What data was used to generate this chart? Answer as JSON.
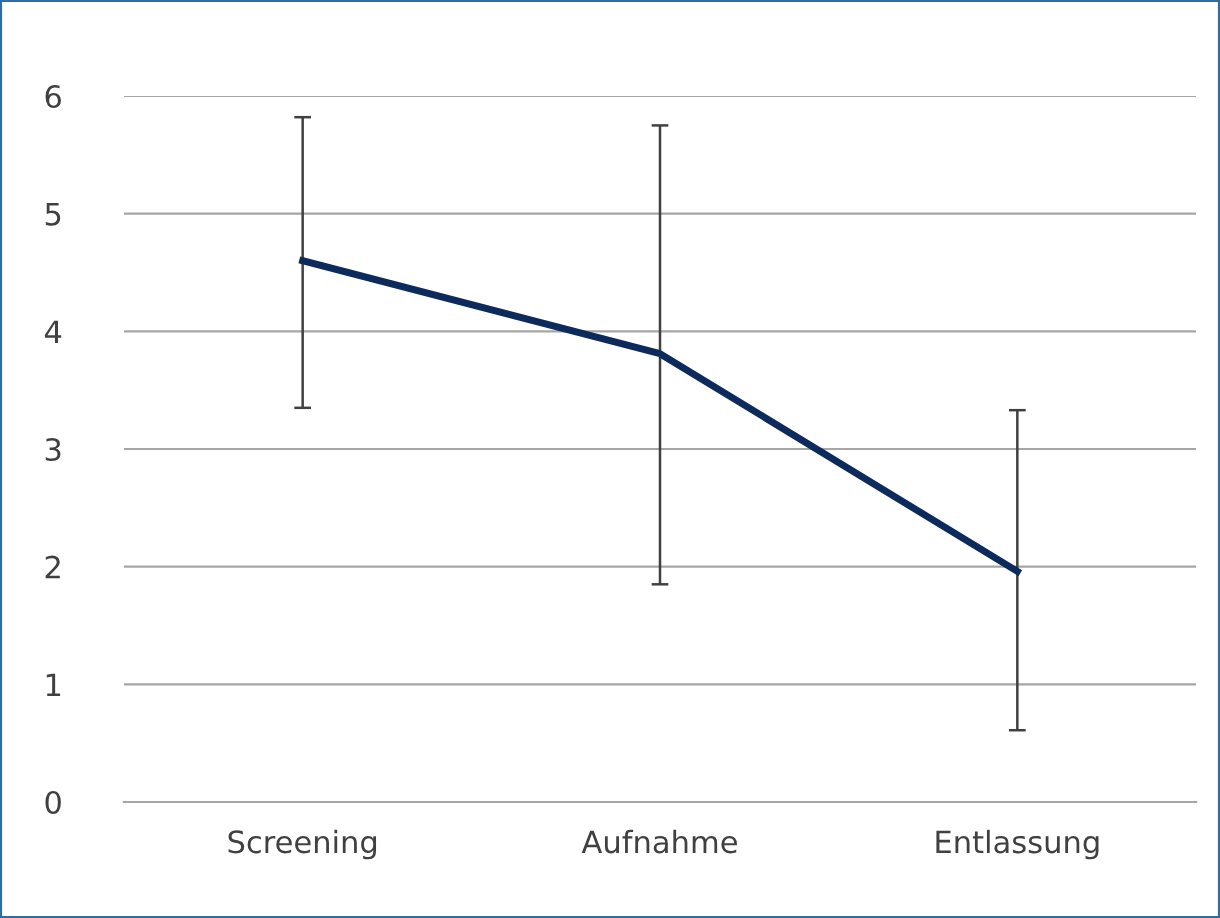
{
  "chart_data": {
    "type": "line",
    "categories": [
      "Screening",
      "Aufnahme",
      "Entlassung"
    ],
    "series": [
      {
        "color": "#0d2a5c",
        "values": [
          4.6,
          3.81,
          1.96
        ],
        "errors": [
          [
            3.35,
            5.82
          ],
          [
            1.85,
            5.75
          ],
          [
            0.61,
            3.33
          ]
        ]
      }
    ],
    "ylim": [
      0,
      6
    ],
    "yticks": [
      0,
      1,
      2,
      3,
      4,
      5,
      6
    ],
    "grid": "y",
    "legend": false,
    "marker": "none",
    "line_style": "solid"
  }
}
